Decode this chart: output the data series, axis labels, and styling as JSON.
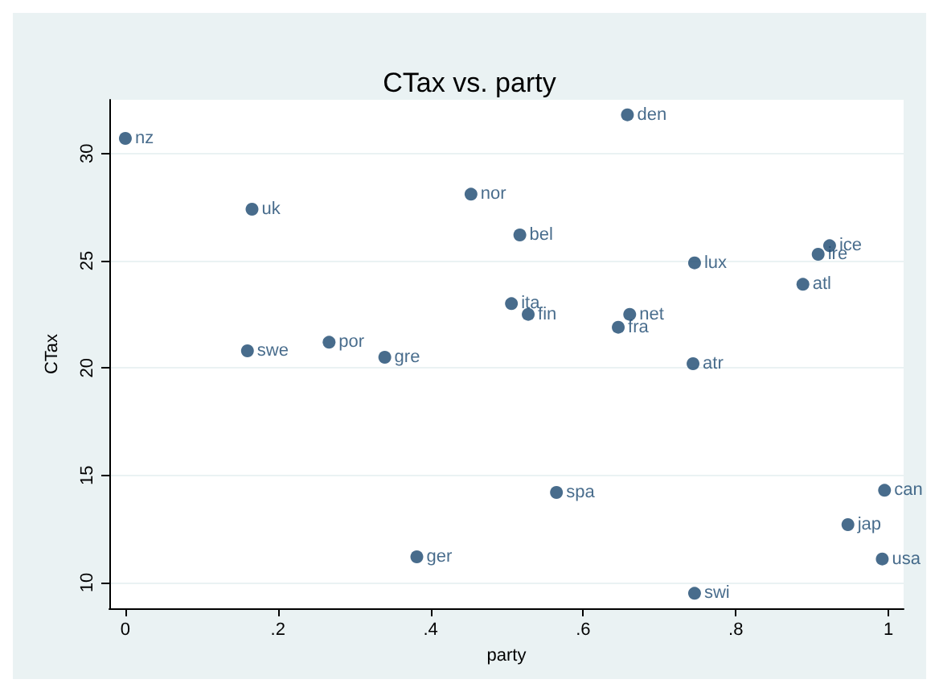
{
  "chart_data": {
    "type": "scatter",
    "title": "CTax vs. party",
    "xlabel": "party",
    "ylabel": "CTax",
    "xlim": [
      -0.021,
      1.02
    ],
    "ylim": [
      8.8,
      32.5
    ],
    "xticks": [
      0,
      {
        "value": 0.2,
        "label": ".2"
      },
      {
        "value": 0.4,
        "label": ".4"
      },
      {
        "value": 0.6,
        "label": ".6"
      },
      {
        "value": 0.8,
        "label": ".8"
      },
      1
    ],
    "yticks": [
      10,
      15,
      20,
      25,
      30
    ],
    "grid": "y",
    "marker": "circle",
    "series": [
      {
        "color": "#1a476f",
        "x": [
          0,
          0.166,
          0.453,
          0.16,
          0.267,
          0.34,
          0.382,
          0.658,
          0.517,
          0.746,
          0.923,
          0.908,
          0.888,
          0.506,
          0.528,
          0.661,
          0.646,
          0.744,
          0.565,
          0.995,
          0.947,
          0.992,
          0.746
        ],
        "values": [
          30.7,
          27.4,
          28.1,
          20.8,
          21.2,
          20.5,
          11.2,
          31.8,
          26.2,
          24.9,
          25.7,
          25.3,
          23.9,
          23.0,
          22.5,
          22.5,
          21.9,
          20.2,
          14.2,
          14.3,
          12.7,
          11.1,
          9.5
        ],
        "value_labels": [
          "nz",
          "uk",
          "nor",
          "swe",
          "por",
          "gre",
          "ger",
          "den",
          "bel",
          "lux",
          "ice",
          "ire",
          "atl",
          "ita",
          "fin",
          "net",
          "fra",
          "atr",
          "spa",
          "can",
          "jap",
          "usa",
          "swi"
        ]
      }
    ]
  }
}
